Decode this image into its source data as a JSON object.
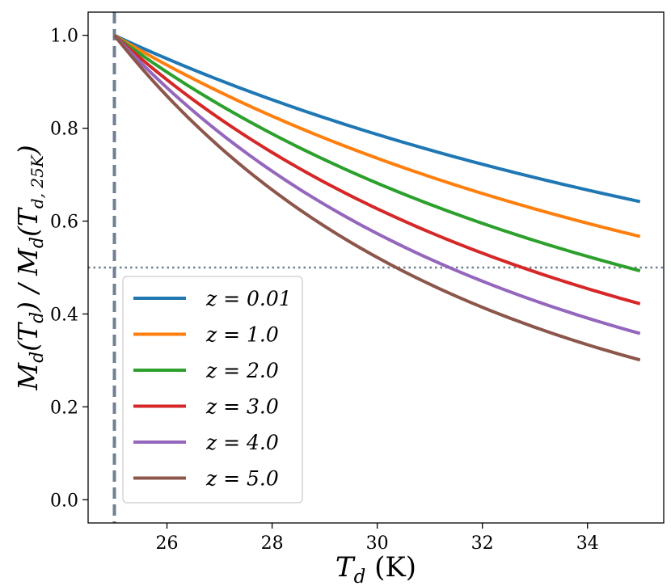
{
  "chart_data": {
    "type": "line",
    "title": "",
    "xlabel": {
      "main": "T",
      "sub": "d",
      "unit": " (K)"
    },
    "ylabel": {
      "text": "M_d(T_d) / M_d(T_d,25K)",
      "parts": [
        "M",
        "d",
        "(T",
        "d",
        ") / M",
        "d",
        "(T",
        "d, 25K",
        ")"
      ]
    },
    "xlim": [
      24.5,
      35.45
    ],
    "ylim": [
      -0.05,
      1.05
    ],
    "xticks": [
      26,
      28,
      30,
      32,
      34
    ],
    "xtick_labels": [
      "26",
      "28",
      "30",
      "32",
      "34"
    ],
    "yticks": [
      0.0,
      0.2,
      0.4,
      0.6,
      0.8,
      1.0
    ],
    "ytick_labels": [
      "0.0",
      "0.2",
      "0.4",
      "0.6",
      "0.8",
      "1.0"
    ],
    "grid": false,
    "reference_lines": [
      {
        "orientation": "vertical",
        "value": 25,
        "style": "dashed",
        "color": "#708090"
      },
      {
        "orientation": "horizontal",
        "value": 0.5,
        "style": "dotted",
        "color": "#708090"
      }
    ],
    "x_range": [
      25,
      35
    ],
    "legend_position": "lower-left",
    "series": [
      {
        "name": "z = 0.01",
        "color": "#1f77b4",
        "end_value": 0.642
      },
      {
        "name": "z = 1.0",
        "color": "#ff7f0e",
        "end_value": 0.567
      },
      {
        "name": "z = 2.0",
        "color": "#2ca02c",
        "end_value": 0.493
      },
      {
        "name": "z = 3.0",
        "color": "#d62728",
        "end_value": 0.422
      },
      {
        "name": "z = 4.0",
        "color": "#9467bd",
        "end_value": 0.358
      },
      {
        "name": "z = 5.0",
        "color": "#8c564b",
        "end_value": 0.301
      }
    ]
  }
}
